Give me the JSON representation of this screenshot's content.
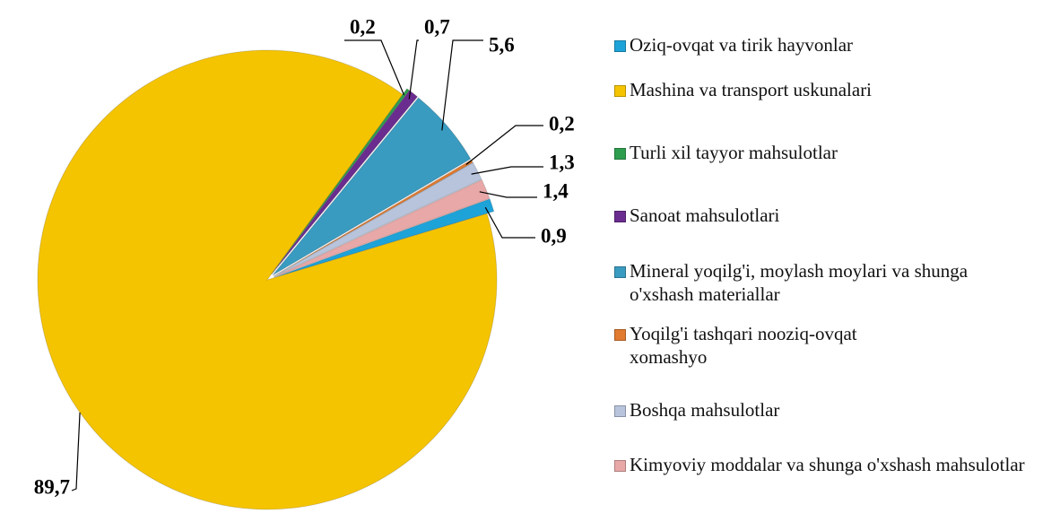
{
  "chart_data": {
    "type": "pie",
    "categories": [
      "Oziq-ovqat va tirik hayvonlar",
      "Mashina va transport uskunalari",
      "Turli xil tayyor mahsulotlar",
      "Sanoat mahsulotlari",
      "Mineral yoqilg'i, moylash moylari va shunga o'xshash materiallar",
      "Yoqilg'i tashqari nooziq-ovqat xomashyo",
      "Boshqa mahsulotlar",
      "Kimyoviy moddalar va shunga o'xshash mahsulotlar"
    ],
    "values": [
      0.9,
      89.7,
      0.2,
      0.7,
      5.6,
      0.2,
      1.3,
      1.4
    ],
    "value_labels": [
      "0,9",
      "89,7",
      "0,2",
      "0,7",
      "5,6",
      "0,2",
      "1,3",
      "1,4"
    ],
    "colors": [
      "#1ea3d9",
      "#f5c400",
      "#2e9e4e",
      "#6a2d8f",
      "#3a9bc0",
      "#e07b30",
      "#b8c4dc",
      "#e8a8a8"
    ],
    "legend": "right"
  }
}
